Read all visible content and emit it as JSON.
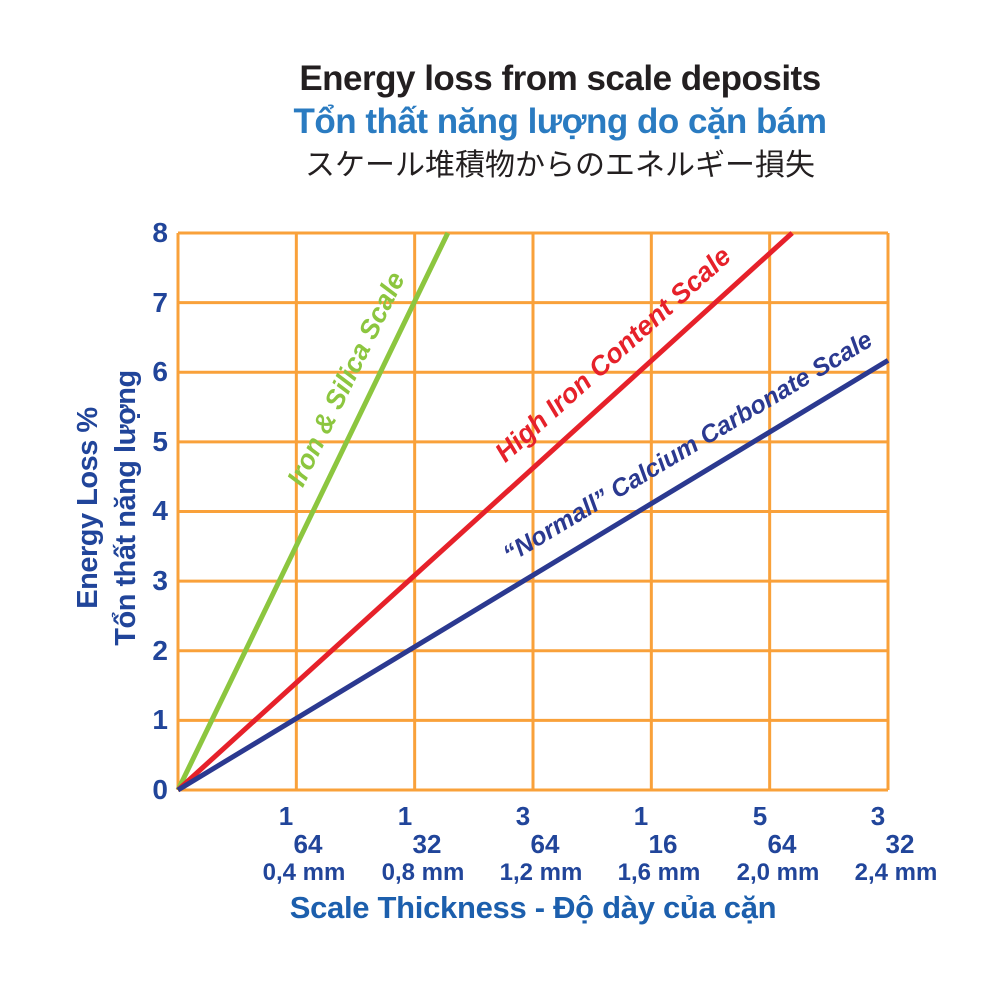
{
  "header": {
    "title_en": "Energy loss from scale deposits",
    "title_vi": "Tổn thất năng lượng do cặn bám",
    "title_ja": "スケール堆積物からのエネルギー損失"
  },
  "colors": {
    "background": "#FFFFFF",
    "ink": "#231F20",
    "title_blue": "#2A7BC1",
    "navy_text": "#21459A",
    "axis_title_blue": "#1C5FAD",
    "grid_orange": "#F9A13A",
    "series_green": "#8CC63F",
    "series_red": "#E6212A",
    "series_navy": "#2B3990"
  },
  "y_axis": {
    "title_line1": "Energy Loss %",
    "title_line2": "Tổn thất năng lượng",
    "tick_labels_top_to_bottom": [
      "8",
      "7",
      "6",
      "5",
      "4",
      "3",
      "2",
      "1",
      "0"
    ]
  },
  "x_axis": {
    "title": "Scale Thickness - Độ dày của cặn",
    "ticks": [
      {
        "num": "1",
        "den": "64",
        "mm": "0,4 mm"
      },
      {
        "num": "1",
        "den": "32",
        "mm": "0,8 mm"
      },
      {
        "num": "3",
        "den": "64",
        "mm": "1,2 mm"
      },
      {
        "num": "1",
        "den": "16",
        "mm": "1,6 mm"
      },
      {
        "num": "5",
        "den": "64",
        "mm": "2,0 mm"
      },
      {
        "num": "3",
        "den": "32",
        "mm": "2,4 mm"
      }
    ]
  },
  "chart_data": {
    "type": "line",
    "title": "Energy loss from scale deposits",
    "xlabel": "Scale Thickness - Độ dày của cặn",
    "ylabel": "Energy Loss % (Tổn thất năng lượng)",
    "x_unit": "scale thickness in 1/64 inch steps (0,4 mm each)",
    "xlim_units": [
      0,
      6
    ],
    "ylim": [
      0,
      8
    ],
    "grid": true,
    "grid_color": "#F9A13A",
    "x_tick_positions_units": [
      1,
      2,
      3,
      4,
      5,
      6
    ],
    "x_tick_labels_inches": [
      "1/64",
      "1/32",
      "3/64",
      "1/16",
      "5/64",
      "3/32"
    ],
    "x_tick_labels_mm": [
      "0,4 mm",
      "0,8 mm",
      "1,2 mm",
      "1,6 mm",
      "2,0 mm",
      "2,4 mm"
    ],
    "y_tick_labels": [
      "0",
      "1",
      "2",
      "3",
      "4",
      "5",
      "6",
      "7",
      "8"
    ],
    "legend_position": "labels rotated along lines",
    "series": [
      {
        "name": "Iron & Silica Scale",
        "color": "#8CC63F",
        "points_units": [
          [
            0,
            0
          ],
          [
            2.28,
            8
          ]
        ],
        "slope_pct_per_unit": 3.5
      },
      {
        "name": "High Iron Content Scale",
        "color": "#E6212A",
        "points_units": [
          [
            0,
            0
          ],
          [
            5.19,
            8
          ]
        ],
        "slope_pct_per_unit": 1.54
      },
      {
        "name": "“Normall” Calcium Carbonate Scale",
        "color": "#2B3990",
        "points_units": [
          [
            0,
            0
          ],
          [
            6,
            6.17
          ]
        ],
        "slope_pct_per_unit": 1.03
      }
    ]
  }
}
